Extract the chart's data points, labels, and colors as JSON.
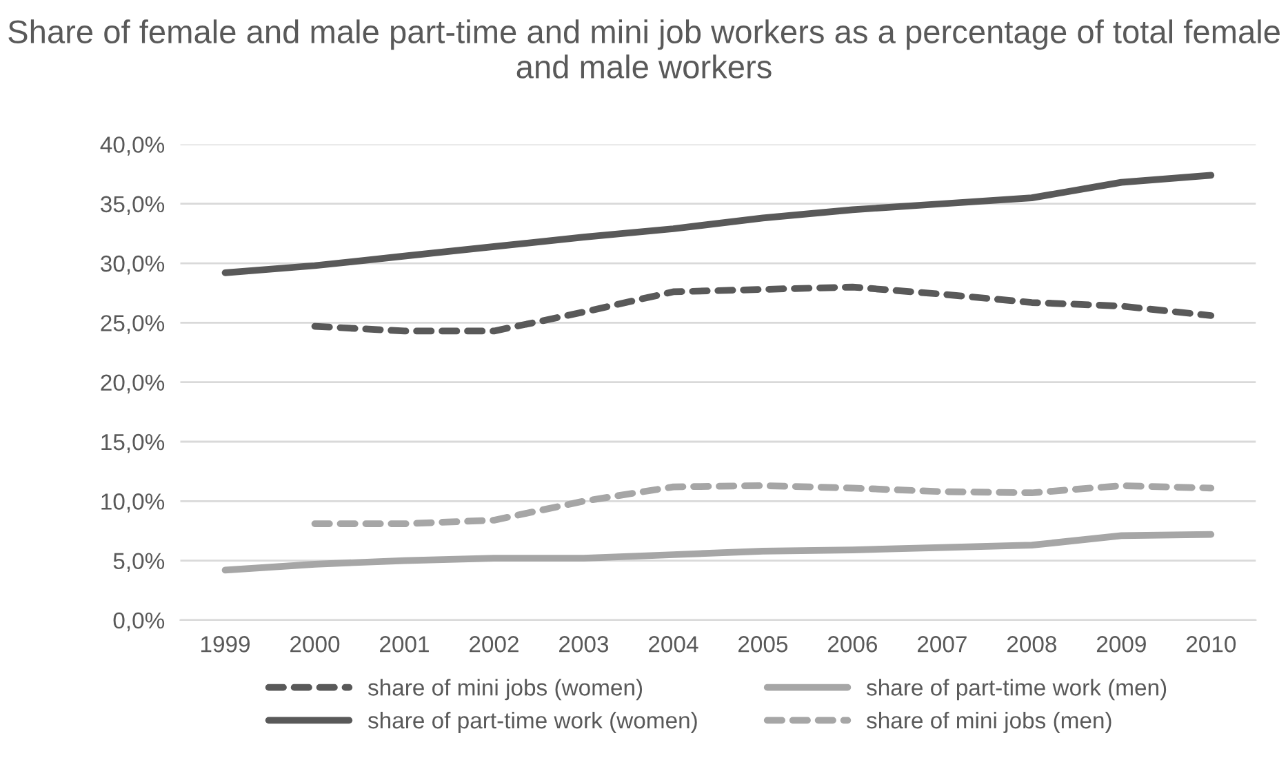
{
  "chart_data": {
    "type": "line",
    "title": "Share of female and male part-time and mini job workers as a percentage of total female and male workers",
    "categories": [
      "1999",
      "2000",
      "2001",
      "2002",
      "2003",
      "2004",
      "2005",
      "2006",
      "2007",
      "2008",
      "2009",
      "2010"
    ],
    "series": [
      {
        "name": "share of mini jobs (women)",
        "color": "#595959",
        "line_style": "dashed",
        "values": [
          null,
          24.7,
          24.3,
          24.3,
          25.9,
          27.6,
          27.8,
          28.0,
          27.4,
          26.7,
          26.4,
          25.6
        ]
      },
      {
        "name": "share of part-time work (women)",
        "color": "#595959",
        "line_style": "solid",
        "values": [
          29.2,
          29.8,
          30.6,
          31.4,
          32.2,
          32.9,
          33.8,
          34.5,
          35.0,
          35.5,
          36.8,
          37.4
        ]
      },
      {
        "name": "share of part-time work (men)",
        "color": "#a6a6a6",
        "line_style": "solid",
        "values": [
          4.2,
          4.7,
          5.0,
          5.2,
          5.2,
          5.5,
          5.8,
          5.9,
          6.1,
          6.3,
          7.1,
          7.2
        ]
      },
      {
        "name": "share of mini jobs (men)",
        "color": "#a6a6a6",
        "line_style": "dashed",
        "values": [
          null,
          8.1,
          8.1,
          8.4,
          10.0,
          11.2,
          11.3,
          11.1,
          10.8,
          10.7,
          11.3,
          11.1
        ]
      }
    ],
    "ylim": [
      0,
      40
    ],
    "yticks": [
      {
        "value": 0,
        "label": "0,0%"
      },
      {
        "value": 5,
        "label": "5,0%"
      },
      {
        "value": 10,
        "label": "10,0%"
      },
      {
        "value": 15,
        "label": "15,0%"
      },
      {
        "value": 20,
        "label": "20,0%"
      },
      {
        "value": 25,
        "label": "25,0%"
      },
      {
        "value": 30,
        "label": "30,0%"
      },
      {
        "value": 35,
        "label": "35,0%"
      },
      {
        "value": 40,
        "label": "40,0%"
      }
    ],
    "grid": "y",
    "legend": "bottom",
    "marker": "none"
  }
}
